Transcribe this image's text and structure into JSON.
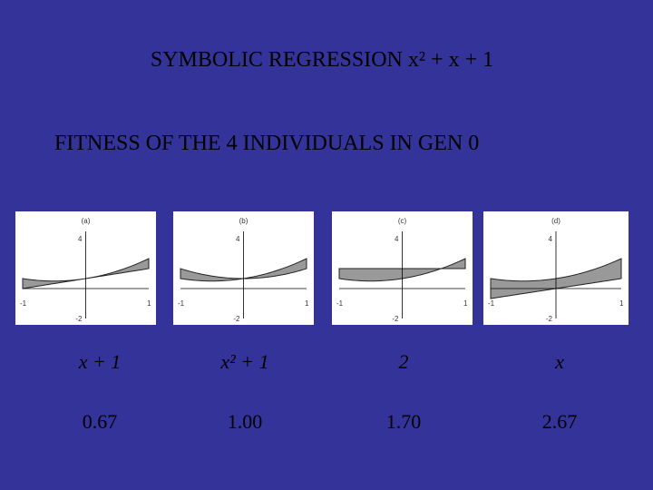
{
  "title": "SYMBOLIC REGRESSION x² + x + 1",
  "subtitle": "FITNESS OF THE 4 INDIVIDUALS IN GEN 0",
  "axis_labels": {
    "y_top": "4",
    "y_bottom": "-2",
    "x_left": "-1",
    "x_right": "1"
  },
  "panels": [
    {
      "label": "(a)",
      "expression": "x + 1",
      "fitness": "0.67"
    },
    {
      "label": "(b)",
      "expression": "x² + 1",
      "fitness": "1.00"
    },
    {
      "label": "(c)",
      "expression": "2",
      "fitness": "1.70"
    },
    {
      "label": "(d)",
      "expression": "x",
      "fitness": "2.67"
    }
  ]
}
